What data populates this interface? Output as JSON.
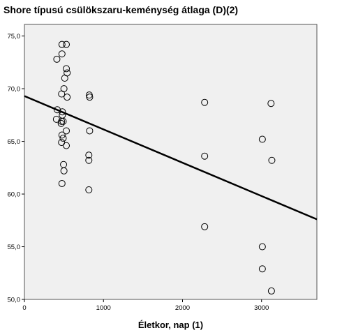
{
  "chart_data": {
    "type": "scatter",
    "title": "Shore típusú csülökszaru-keménység átlaga (D)(2)",
    "xlabel": "Életkor, nap (1)",
    "ylabel": "",
    "xlim": [
      0,
      3700
    ],
    "ylim": [
      50,
      76.1
    ],
    "x_ticks": [
      0,
      1000,
      2000,
      3000
    ],
    "x_tick_labels": [
      "0",
      "1000",
      "2000",
      "3000"
    ],
    "y_ticks": [
      50,
      55,
      60,
      65,
      70,
      75
    ],
    "y_tick_labels": [
      "50,0",
      "55,0",
      "60,0",
      "65,0",
      "70,0",
      "75,0"
    ],
    "grid": false,
    "plot_background": "#f0f0f0",
    "marker": "open-circle",
    "marker_color": "#000000",
    "line_color": "#000000",
    "points": [
      {
        "x": 475,
        "y": 74.2
      },
      {
        "x": 530,
        "y": 74.2
      },
      {
        "x": 475,
        "y": 73.3
      },
      {
        "x": 410,
        "y": 72.8
      },
      {
        "x": 530,
        "y": 71.9
      },
      {
        "x": 540,
        "y": 71.5
      },
      {
        "x": 510,
        "y": 71.0
      },
      {
        "x": 500,
        "y": 70.0
      },
      {
        "x": 470,
        "y": 69.5
      },
      {
        "x": 540,
        "y": 69.2
      },
      {
        "x": 820,
        "y": 69.4
      },
      {
        "x": 825,
        "y": 69.2
      },
      {
        "x": 415,
        "y": 68.0
      },
      {
        "x": 480,
        "y": 67.8
      },
      {
        "x": 480,
        "y": 67.5
      },
      {
        "x": 405,
        "y": 67.1
      },
      {
        "x": 470,
        "y": 66.9
      },
      {
        "x": 490,
        "y": 66.9
      },
      {
        "x": 465,
        "y": 66.7
      },
      {
        "x": 530,
        "y": 66.0
      },
      {
        "x": 475,
        "y": 65.6
      },
      {
        "x": 490,
        "y": 65.3
      },
      {
        "x": 470,
        "y": 64.9
      },
      {
        "x": 530,
        "y": 64.6
      },
      {
        "x": 825,
        "y": 66.0
      },
      {
        "x": 815,
        "y": 63.7
      },
      {
        "x": 815,
        "y": 63.2
      },
      {
        "x": 495,
        "y": 62.8
      },
      {
        "x": 500,
        "y": 62.2
      },
      {
        "x": 475,
        "y": 61.0
      },
      {
        "x": 815,
        "y": 60.4
      },
      {
        "x": 2280,
        "y": 68.7
      },
      {
        "x": 2280,
        "y": 63.6
      },
      {
        "x": 2280,
        "y": 56.9
      },
      {
        "x": 3010,
        "y": 65.2
      },
      {
        "x": 3120,
        "y": 68.6
      },
      {
        "x": 3130,
        "y": 63.2
      },
      {
        "x": 3010,
        "y": 55.0
      },
      {
        "x": 3010,
        "y": 52.9
      },
      {
        "x": 3125,
        "y": 50.8
      }
    ],
    "fit_line": {
      "x": [
        0,
        3700
      ],
      "y": [
        69.3,
        57.6
      ]
    }
  }
}
